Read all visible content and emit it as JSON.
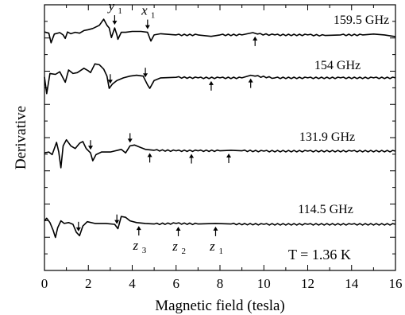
{
  "chart_data": {
    "type": "line",
    "title": "",
    "xlabel": "Magnetic field (tesla)",
    "ylabel": "Derivative",
    "xlim": [
      0,
      16
    ],
    "xticks": [
      0,
      2,
      4,
      6,
      8,
      10,
      12,
      14,
      16
    ],
    "y_ticks_labeled": false,
    "annotation": "T = 1.36 K",
    "series": [
      {
        "name": "159.5 GHz",
        "points": [
          [
            0.0,
            0.22
          ],
          [
            0.2,
            0.15
          ],
          [
            0.3,
            -0.4
          ],
          [
            0.45,
            0.1
          ],
          [
            0.7,
            0.18
          ],
          [
            0.85,
            0.05
          ],
          [
            0.95,
            -0.15
          ],
          [
            1.05,
            0.22
          ],
          [
            1.2,
            0.12
          ],
          [
            1.4,
            0.2
          ],
          [
            1.6,
            0.15
          ],
          [
            1.8,
            0.3
          ],
          [
            2.0,
            0.35
          ],
          [
            2.2,
            0.42
          ],
          [
            2.5,
            0.6
          ],
          [
            2.7,
            0.95
          ],
          [
            2.85,
            0.6
          ],
          [
            2.95,
            0.45
          ],
          [
            3.05,
            -0.1
          ],
          [
            3.2,
            0.45
          ],
          [
            3.3,
            0.05
          ],
          [
            3.35,
            -0.2
          ],
          [
            3.5,
            0.2
          ],
          [
            3.7,
            0.2
          ],
          [
            4.0,
            0.25
          ],
          [
            4.4,
            0.25
          ],
          [
            4.7,
            0.2
          ],
          [
            4.85,
            -0.3
          ],
          [
            5.0,
            0.05
          ],
          [
            5.3,
            0.12
          ],
          [
            6.0,
            0.05
          ],
          [
            7.0,
            0.05
          ],
          [
            7.6,
            -0.03
          ],
          [
            8.0,
            0.05
          ],
          [
            9.0,
            0.05
          ],
          [
            9.5,
            0.18
          ],
          [
            9.7,
            0.1
          ],
          [
            10.5,
            0.05
          ],
          [
            12.0,
            0.05
          ],
          [
            12.8,
            0.02
          ],
          [
            13.5,
            0.05
          ],
          [
            14.5,
            0.05
          ],
          [
            15.0,
            0.1
          ],
          [
            15.5,
            0.05
          ],
          [
            16.0,
            -0.05
          ]
        ],
        "markers": [
          {
            "x": 3.2,
            "label": "y",
            "sub": "1"
          },
          {
            "x": 4.7,
            "label": "x",
            "sub": "1"
          },
          {
            "x": 9.6,
            "label": "",
            "sub": ""
          }
        ]
      },
      {
        "name": "154 GHz",
        "points": [
          [
            0.0,
            0.1
          ],
          [
            0.1,
            -0.85
          ],
          [
            0.25,
            0.3
          ],
          [
            0.5,
            0.25
          ],
          [
            0.7,
            0.4
          ],
          [
            0.95,
            -0.2
          ],
          [
            1.1,
            0.5
          ],
          [
            1.3,
            0.3
          ],
          [
            1.5,
            0.35
          ],
          [
            1.8,
            0.6
          ],
          [
            2.0,
            0.45
          ],
          [
            2.1,
            0.35
          ],
          [
            2.3,
            0.85
          ],
          [
            2.5,
            0.8
          ],
          [
            2.7,
            0.55
          ],
          [
            2.85,
            0.15
          ],
          [
            2.95,
            -0.55
          ],
          [
            3.1,
            -0.3
          ],
          [
            3.3,
            -0.1
          ],
          [
            3.6,
            0.05
          ],
          [
            3.9,
            0.15
          ],
          [
            4.2,
            0.2
          ],
          [
            4.5,
            0.15
          ],
          [
            4.7,
            -0.35
          ],
          [
            4.8,
            -0.55
          ],
          [
            5.0,
            -0.1
          ],
          [
            5.3,
            0.05
          ],
          [
            6.0,
            0.08
          ],
          [
            7.0,
            0.05
          ],
          [
            8.0,
            0.05
          ],
          [
            9.0,
            0.05
          ],
          [
            9.4,
            0.2
          ],
          [
            9.6,
            0.15
          ],
          [
            10.5,
            0.05
          ],
          [
            12.0,
            0.05
          ],
          [
            13.5,
            0.05
          ],
          [
            15.0,
            0.05
          ],
          [
            16.0,
            0.05
          ]
        ],
        "markers": [
          {
            "x": 3.0,
            "label": "",
            "sub": ""
          },
          {
            "x": 4.6,
            "label": "",
            "sub": ""
          },
          {
            "x": 7.6,
            "label": "",
            "sub": ""
          },
          {
            "x": 9.4,
            "label": "",
            "sub": ""
          }
        ]
      },
      {
        "name": "131.9 GHz",
        "points": [
          [
            0.0,
            -0.1
          ],
          [
            0.2,
            -0.05
          ],
          [
            0.35,
            -0.2
          ],
          [
            0.55,
            0.5
          ],
          [
            0.65,
            -0.05
          ],
          [
            0.75,
            -0.95
          ],
          [
            0.85,
            0.3
          ],
          [
            1.0,
            0.65
          ],
          [
            1.2,
            0.3
          ],
          [
            1.4,
            0.15
          ],
          [
            1.6,
            0.45
          ],
          [
            1.75,
            0.55
          ],
          [
            1.9,
            0.15
          ],
          [
            2.1,
            -0.1
          ],
          [
            2.2,
            -0.55
          ],
          [
            2.35,
            -0.2
          ],
          [
            2.6,
            -0.05
          ],
          [
            3.0,
            -0.05
          ],
          [
            3.5,
            0.1
          ],
          [
            3.7,
            -0.1
          ],
          [
            3.9,
            0.3
          ],
          [
            4.1,
            0.35
          ],
          [
            4.4,
            0.2
          ],
          [
            4.6,
            0.1
          ],
          [
            5.0,
            0.05
          ],
          [
            6.0,
            0.02
          ],
          [
            7.0,
            0.02
          ],
          [
            8.0,
            0.02
          ],
          [
            8.5,
            0.05
          ],
          [
            9.0,
            0.02
          ],
          [
            10.0,
            0.0
          ],
          [
            12.0,
            0.0
          ],
          [
            14.0,
            0.0
          ],
          [
            16.0,
            0.0
          ]
        ],
        "markers": [
          {
            "x": 2.1,
            "label": "",
            "sub": ""
          },
          {
            "x": 3.9,
            "label": "",
            "sub": ""
          },
          {
            "x": 4.8,
            "label": "",
            "sub": ""
          },
          {
            "x": 6.7,
            "label": "",
            "sub": ""
          },
          {
            "x": 8.4,
            "label": "",
            "sub": ""
          }
        ]
      },
      {
        "name": "114.5 GHz",
        "points": [
          [
            0.0,
            0.2
          ],
          [
            0.1,
            0.35
          ],
          [
            0.25,
            0.1
          ],
          [
            0.4,
            -0.35
          ],
          [
            0.5,
            -0.75
          ],
          [
            0.6,
            -0.2
          ],
          [
            0.75,
            0.2
          ],
          [
            0.9,
            0.05
          ],
          [
            1.1,
            0.1
          ],
          [
            1.3,
            0.0
          ],
          [
            1.45,
            -0.45
          ],
          [
            1.6,
            -0.65
          ],
          [
            1.75,
            -0.1
          ],
          [
            1.95,
            0.15
          ],
          [
            2.3,
            0.05
          ],
          [
            2.8,
            0.05
          ],
          [
            3.2,
            0.0
          ],
          [
            3.35,
            -0.25
          ],
          [
            3.5,
            0.45
          ],
          [
            3.7,
            0.4
          ],
          [
            3.9,
            0.2
          ],
          [
            4.2,
            0.1
          ],
          [
            4.6,
            0.05
          ],
          [
            5.0,
            0.02
          ],
          [
            6.0,
            0.05
          ],
          [
            7.0,
            0.02
          ],
          [
            7.8,
            0.05
          ],
          [
            8.5,
            0.02
          ],
          [
            10.0,
            0.0
          ],
          [
            12.0,
            0.0
          ],
          [
            14.0,
            0.0
          ],
          [
            16.0,
            0.0
          ]
        ],
        "markers": [
          {
            "x": 1.55,
            "label": "",
            "sub": ""
          },
          {
            "x": 3.3,
            "label": "",
            "sub": ""
          },
          {
            "x": 4.3,
            "label": "z",
            "sub": "3"
          },
          {
            "x": 6.1,
            "label": "z",
            "sub": "2"
          },
          {
            "x": 7.8,
            "label": "z",
            "sub": "1"
          }
        ]
      }
    ]
  }
}
